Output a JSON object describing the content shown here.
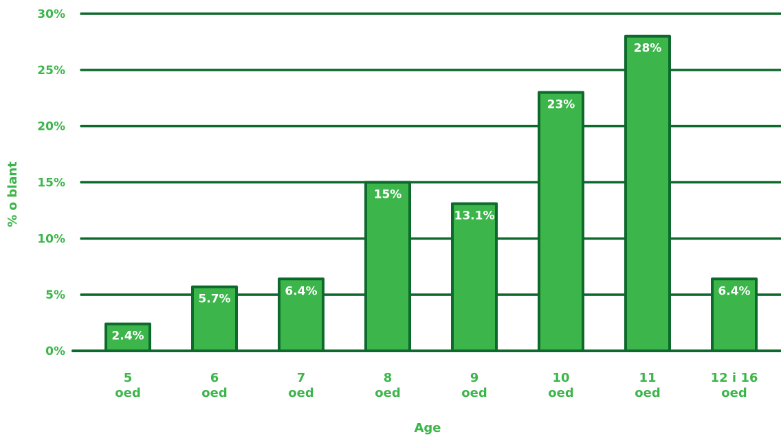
{
  "chart_data": {
    "type": "bar",
    "categories": [
      [
        "5",
        "oed"
      ],
      [
        "6",
        "oed"
      ],
      [
        "7",
        "oed"
      ],
      [
        "8",
        "oed"
      ],
      [
        "9",
        "oed"
      ],
      [
        "10",
        "oed"
      ],
      [
        "11",
        "oed"
      ],
      [
        "12 i 16",
        "oed"
      ]
    ],
    "values": [
      2.4,
      5.7,
      6.4,
      15,
      13.1,
      23,
      28,
      6.4
    ],
    "value_labels": [
      "2.4%",
      "5.7%",
      "6.4%",
      "15%",
      "13.1%",
      "23%",
      "28%",
      "6.4%"
    ],
    "yticks": [
      {
        "value": 0,
        "label": "0%"
      },
      {
        "value": 5,
        "label": "5%"
      },
      {
        "value": 10,
        "label": "10%"
      },
      {
        "value": 15,
        "label": "15%"
      },
      {
        "value": 20,
        "label": "20%"
      },
      {
        "value": 25,
        "label": "25%"
      },
      {
        "value": 30,
        "label": "30%"
      }
    ],
    "ylim": [
      0,
      30
    ],
    "xlabel": "Age",
    "ylabel": "% o blant",
    "grid": true,
    "colors": {
      "bar_fill": "#3cb54a",
      "outline": "#0d6a2c",
      "text": "#3cb54a",
      "value_text": "#ffffff"
    }
  }
}
